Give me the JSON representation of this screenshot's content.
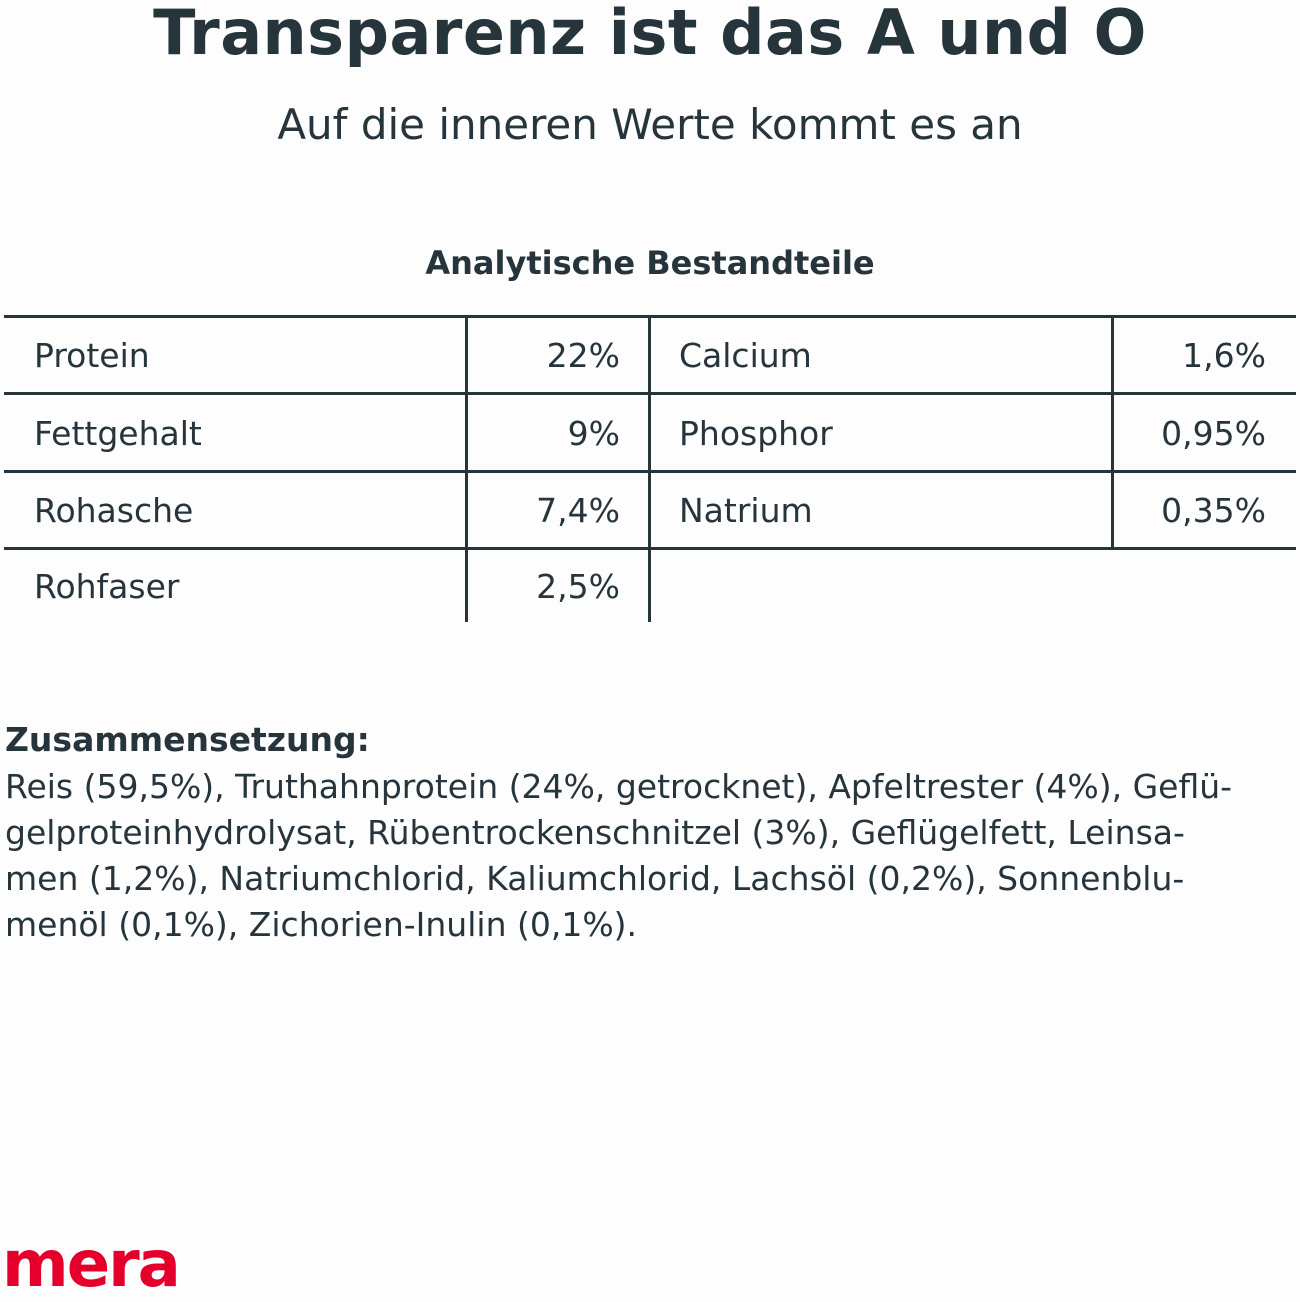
{
  "header": {
    "title": "Transparenz ist das A und O",
    "subtitle": "Auf die inneren Werte kommt es an"
  },
  "analysis": {
    "heading": "Analytische Bestandteile",
    "left": [
      {
        "name": "Protein",
        "value": "22%"
      },
      {
        "name": "Fettgehalt",
        "value": "9%"
      },
      {
        "name": "Rohasche",
        "value": "7,4%"
      },
      {
        "name": "Rohfaser",
        "value": "2,5%"
      }
    ],
    "right": [
      {
        "name": "Calcium",
        "value": "1,6%"
      },
      {
        "name": "Phosphor",
        "value": "0,95%"
      },
      {
        "name": "Natrium",
        "value": "0,35%"
      }
    ]
  },
  "composition": {
    "heading": "Zusammensetzung:",
    "lines": [
      "Reis (59,5%), Truthahnprotein (24%, getrocknet), Apfeltrester (4%), Geflü-",
      "gelproteinhydrolysat, Rübentrockenschnitzel (3%), Geflügelfett, Leinsa-",
      "men (1,2%), Natriumchlorid, Kaliumchlorid, Lachsöl (0,2%), Sonnenblu-",
      "menöl (0,1%), Zichorien-Inulin (0,1%)."
    ]
  },
  "brand": {
    "logo": "mera",
    "color": "#e4002b"
  },
  "colors": {
    "text": "#26343c",
    "background": "#fdfdfd"
  }
}
